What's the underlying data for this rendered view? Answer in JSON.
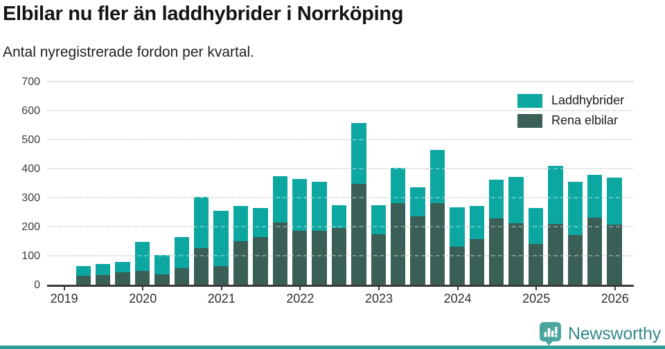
{
  "title": "Elbilar nu fler än laddhybrider i Norrköping",
  "subtitle": "Antal nyregistrerade fordon per kvartal.",
  "legend": [
    {
      "label": "Laddhybrider",
      "color": "#0ba7a0"
    },
    {
      "label": "Rena elbilar",
      "color": "#3a5f57"
    }
  ],
  "brand": {
    "name": "Newsworthy",
    "icon": "newsworthy-speech-bubble-bar-chart-icon",
    "icon_color": "#4ba59d",
    "text_color": "#348a88"
  },
  "colors": {
    "laddhybrider": "#0ba7a0",
    "rena_elbilar": "#3a5f57",
    "gridline": "#e4e4e4",
    "axis": "#3a3a3a",
    "footer_strip": "#2f9e98"
  },
  "chart_data": {
    "type": "bar",
    "stacked": true,
    "title": "Elbilar nu fler än laddhybrider i Norrköping",
    "subtitle": "Antal nyregistrerade fordon per kvartal.",
    "xlabel": "",
    "ylabel": "",
    "ylim": [
      0,
      700
    ],
    "yticks": [
      0,
      100,
      200,
      300,
      400,
      500,
      600,
      700
    ],
    "grid": true,
    "legend_position": "top-right",
    "categories": [
      "2019 Q2",
      "2019 Q3",
      "2019 Q4",
      "2020 Q1",
      "2020 Q2",
      "2020 Q3",
      "2020 Q4",
      "2021 Q1",
      "2021 Q2",
      "2021 Q3",
      "2021 Q4",
      "2022 Q1",
      "2022 Q2",
      "2022 Q3",
      "2022 Q4",
      "2023 Q1",
      "2023 Q2",
      "2023 Q3",
      "2023 Q4",
      "2024 Q1",
      "2024 Q2",
      "2024 Q3",
      "2024 Q4",
      "2025 Q1",
      "2025 Q2",
      "2025 Q3",
      "2025 Q4",
      "2026 Q1"
    ],
    "series": [
      {
        "name": "Rena elbilar",
        "color": "#3a5f57",
        "values": [
          33,
          36,
          45,
          50,
          39,
          60,
          129,
          66,
          153,
          166,
          216,
          188,
          188,
          198,
          350,
          176,
          283,
          239,
          283,
          133,
          160,
          232,
          214,
          143,
          212,
          174,
          234,
          210
        ]
      },
      {
        "name": "Laddhybrider",
        "color": "#0ba7a0",
        "values": [
          34,
          37,
          37,
          101,
          66,
          107,
          176,
          190,
          122,
          100,
          160,
          179,
          169,
          79,
          210,
          101,
          121,
          100,
          183,
          136,
          115,
          133,
          161,
          123,
          200,
          184,
          148,
          162
        ]
      }
    ],
    "xtick_labels": [
      "2019",
      "2020",
      "2021",
      "2022",
      "2023",
      "2024",
      "2025",
      "2026"
    ]
  }
}
